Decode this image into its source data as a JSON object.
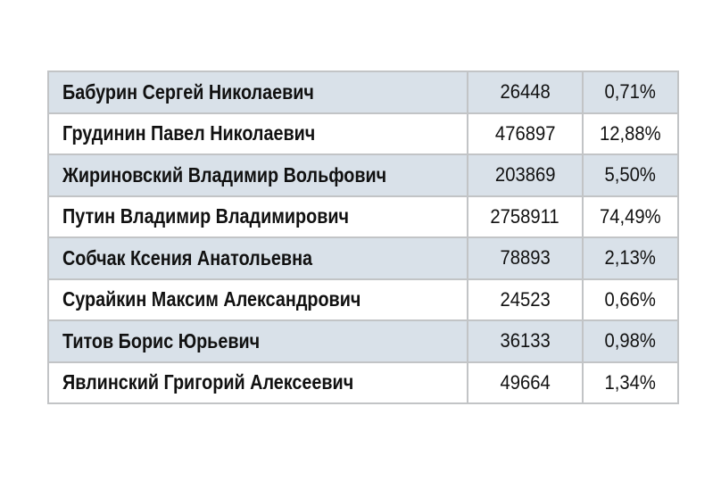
{
  "table": {
    "rows": [
      {
        "name": "Бабурин Сергей Николаевич",
        "votes": "26448",
        "percent": "0,71%"
      },
      {
        "name": "Грудинин Павел Николаевич",
        "votes": "476897",
        "percent": "12,88%"
      },
      {
        "name": "Жириновский Владимир Вольфович",
        "votes": "203869",
        "percent": "5,50%"
      },
      {
        "name": "Путин Владимир Владимирович",
        "votes": "2758911",
        "percent": "74,49%"
      },
      {
        "name": "Собчак Ксения Анатольевна",
        "votes": "78893",
        "percent": "2,13%"
      },
      {
        "name": "Сурайкин Максим Александрович",
        "votes": "24523",
        "percent": "0,66%"
      },
      {
        "name": "Титов Борис Юрьевич",
        "votes": "36133",
        "percent": "0,98%"
      },
      {
        "name": "Явлинский Григорий Алексеевич",
        "votes": "49664",
        "percent": "1,34%"
      }
    ]
  },
  "colors": {
    "shaded_row": "#d9e1e9",
    "border": "#c2c4c6",
    "text": "#111111"
  }
}
